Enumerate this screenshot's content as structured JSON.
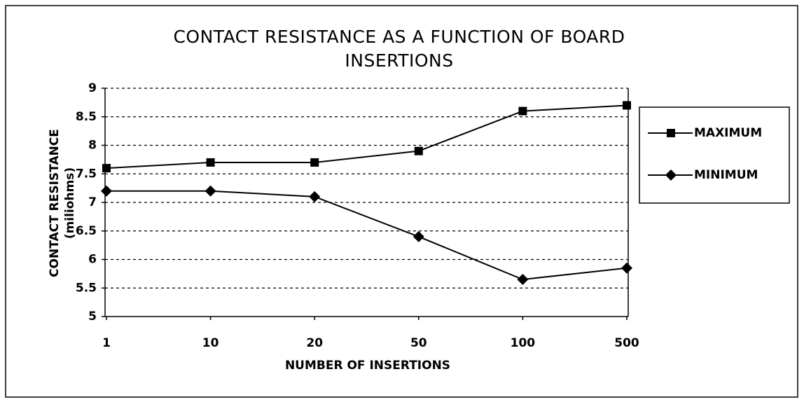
{
  "chart_data": {
    "type": "line",
    "title": "CONTACT RESISTANCE AS A FUNCTION OF BOARD INSERTIONS",
    "x_label": "NUMBER OF INSERTIONS",
    "y_label": "CONTACT RESISTANCE",
    "y_label_unit": "(miliohms)",
    "categories": [
      "1",
      "10",
      "20",
      "50",
      "100",
      "500"
    ],
    "series": [
      {
        "name": "MAXIMUM",
        "color": "#000000",
        "marker": "square",
        "values": [
          7.6,
          7.7,
          7.7,
          7.9,
          8.6,
          8.7
        ]
      },
      {
        "name": "MINIMUM",
        "color": "#000000",
        "marker": "diamond",
        "values": [
          7.2,
          7.2,
          7.1,
          6.4,
          5.65,
          5.85
        ]
      }
    ],
    "ylim": [
      5,
      9
    ],
    "yticks": [
      5,
      5.5,
      6,
      6.5,
      7,
      7.5,
      8,
      8.5,
      9
    ],
    "grid": true,
    "legend": "right"
  }
}
